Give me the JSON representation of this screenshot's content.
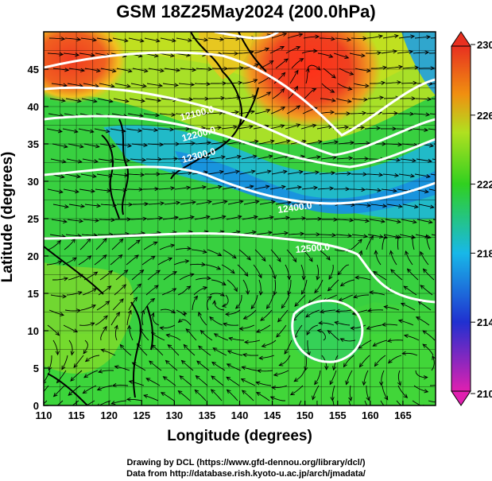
{
  "title": "GSM 18Z25May2024 (200.0hPa)",
  "xaxis": {
    "label": "Longitude (degrees)",
    "range": [
      110,
      170
    ],
    "ticks": [
      "110",
      "115",
      "120",
      "125",
      "130",
      "135",
      "140",
      "145",
      "150",
      "155",
      "160",
      "165"
    ]
  },
  "yaxis": {
    "label": "Latitude  (degrees)",
    "range": [
      0,
      50
    ],
    "ticks": [
      "0",
      "5",
      "10",
      "15",
      "20",
      "25",
      "30",
      "35",
      "40",
      "45"
    ]
  },
  "colorbar": {
    "range": [
      210,
      230
    ],
    "ticks": [
      "210",
      "214",
      "218",
      "222",
      "226",
      "230"
    ],
    "colors": [
      "#e020b0",
      "#2030d0",
      "#18b8e8",
      "#30d020",
      "#b0e020",
      "#f09010",
      "#e83020"
    ]
  },
  "contour_labels": [
    "12100.0",
    "12200.0",
    "12300.0",
    "12400.0",
    "12500.0"
  ],
  "credits": [
    "Drawing by DCL (https://www.gfd-dennou.org/library/dcl/)",
    "Data from http://database.rish.kyoto-u.ac.jp/arch/jmadata/"
  ]
}
